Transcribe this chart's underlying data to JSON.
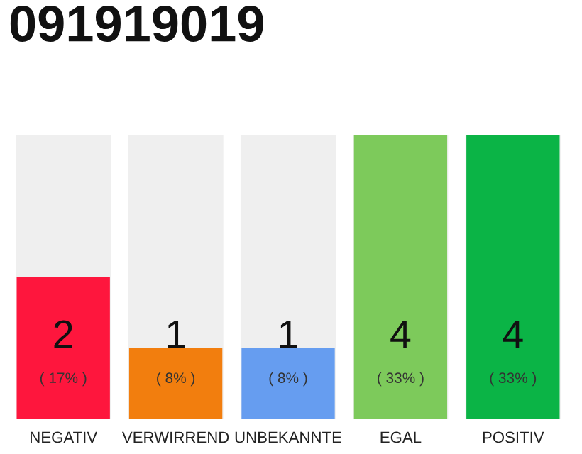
{
  "chart_data": {
    "type": "bar",
    "title": "091919019",
    "categories": [
      "NEGATIV",
      "VERWIRREND",
      "UNBEKANNTE",
      "EGAL",
      "POSITIV"
    ],
    "values": [
      2,
      1,
      1,
      4,
      4
    ],
    "colors": [
      "#fe163d",
      "#f27e0e",
      "#669df0",
      "#7dca5b",
      "#0bb446"
    ],
    "data_labels": true,
    "annotations": [
      {
        "text": "( 17% )",
        "x": "NEGATIV",
        "y": 0
      },
      {
        "text": "( 8% )",
        "x": "VERWIRREND",
        "y": 0
      },
      {
        "text": "( 8% )",
        "x": "UNBEKANNTE",
        "y": 0
      },
      {
        "text": "( 33% )",
        "x": "EGAL",
        "y": 0
      },
      {
        "text": "( 33% )",
        "x": "POSITIV",
        "y": 0
      }
    ],
    "legend": false
  }
}
